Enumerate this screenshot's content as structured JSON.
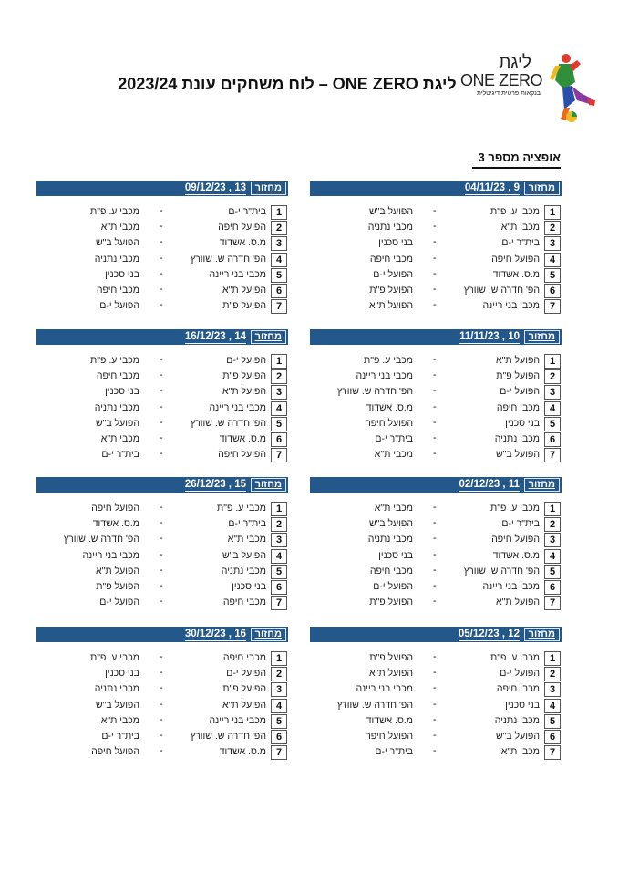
{
  "header": {
    "title": "ליגת ONE ZERO – לוח משחקים עונת 2023/24",
    "logo": {
      "line1": "ליגת",
      "line2": "ONE ZERO",
      "line3": "בנקאות פרטית דיגיטלית"
    },
    "subtitle": "אופציה מספר 3"
  },
  "round_label": "מחזור",
  "separator": " , ",
  "colors": {
    "bar": "#24578a"
  },
  "rounds": [
    {
      "round": "9",
      "date": "04/11/23",
      "matches": [
        [
          "1",
          "מכבי ע. פ\"ת",
          "הפועל ב\"ש"
        ],
        [
          "2",
          "מכבי ת\"א",
          "מכבי נתניה"
        ],
        [
          "3",
          "בית\"ר י-ם",
          "בני סכנין"
        ],
        [
          "4",
          "הפועל חיפה",
          "מכבי חיפה"
        ],
        [
          "5",
          "מ.ס. אשדוד",
          "הפועל י-ם"
        ],
        [
          "6",
          "הפ' חדרה ש. שוורץ",
          "הפועל פ\"ת"
        ],
        [
          "7",
          "מכבי בני ריינה",
          "הפועל ת\"א"
        ]
      ]
    },
    {
      "round": "13",
      "date": "09/12/23",
      "matches": [
        [
          "1",
          "בית\"ר י-ם",
          "מכבי ע. פ\"ת"
        ],
        [
          "2",
          "הפועל חיפה",
          "מכבי ת\"א"
        ],
        [
          "3",
          "מ.ס. אשדוד",
          "הפועל ב\"ש"
        ],
        [
          "4",
          "הפ' חדרה ש. שוורץ",
          "מכבי נתניה"
        ],
        [
          "5",
          "מכבי בני ריינה",
          "בני סכנין"
        ],
        [
          "6",
          "הפועל ת\"א",
          "מכבי חיפה"
        ],
        [
          "7",
          "הפועל פ\"ת",
          "הפועל י-ם"
        ]
      ]
    },
    {
      "round": "10",
      "date": "11/11/23",
      "matches": [
        [
          "1",
          "הפועל ת\"א",
          "מכבי ע. פ\"ת"
        ],
        [
          "2",
          "הפועל פ\"ת",
          "מכבי בני ריינה"
        ],
        [
          "3",
          "הפועל י-ם",
          "הפ' חדרה ש. שוורץ"
        ],
        [
          "4",
          "מכבי חיפה",
          "מ.ס. אשדוד"
        ],
        [
          "5",
          "בני סכנין",
          "הפועל חיפה"
        ],
        [
          "6",
          "מכבי נתניה",
          "בית\"ר י-ם"
        ],
        [
          "7",
          "הפועל ב\"ש",
          "מכבי ת\"א"
        ]
      ]
    },
    {
      "round": "14",
      "date": "16/12/23",
      "matches": [
        [
          "1",
          "הפועל י-ם",
          "מכבי ע. פ\"ת"
        ],
        [
          "2",
          "הפועל פ\"ת",
          "מכבי חיפה"
        ],
        [
          "3",
          "הפועל ת\"א",
          "בני סכנין"
        ],
        [
          "4",
          "מכבי בני ריינה",
          "מכבי נתניה"
        ],
        [
          "5",
          "הפ' חדרה ש. שוורץ",
          "הפועל ב\"ש"
        ],
        [
          "6",
          "מ.ס. אשדוד",
          "מכבי ת\"א"
        ],
        [
          "7",
          "הפועל חיפה",
          "בית\"ר י-ם"
        ]
      ]
    },
    {
      "round": "11",
      "date": "02/12/23",
      "matches": [
        [
          "1",
          "מכבי ע. פ\"ת",
          "מכבי ת\"א"
        ],
        [
          "2",
          "בית\"ר י-ם",
          "הפועל ב\"ש"
        ],
        [
          "3",
          "הפועל חיפה",
          "מכבי נתניה"
        ],
        [
          "4",
          "מ.ס. אשדוד",
          "בני סכנין"
        ],
        [
          "5",
          "הפ' חדרה ש. שוורץ",
          "מכבי חיפה"
        ],
        [
          "6",
          "מכבי בני ריינה",
          "הפועל י-ם"
        ],
        [
          "7",
          "הפועל ת\"א",
          "הפועל פ\"ת"
        ]
      ]
    },
    {
      "round": "15",
      "date": "26/12/23",
      "matches": [
        [
          "1",
          "מכבי ע. פ\"ת",
          "הפועל חיפה"
        ],
        [
          "2",
          "בית\"ר י-ם",
          "מ.ס. אשדוד"
        ],
        [
          "3",
          "מכבי ת\"א",
          "הפ' חדרה ש. שוורץ"
        ],
        [
          "4",
          "הפועל ב\"ש",
          "מכבי בני ריינה"
        ],
        [
          "5",
          "מכבי נתניה",
          "הפועל ת\"א"
        ],
        [
          "6",
          "בני סכנין",
          "הפועל פ\"ת"
        ],
        [
          "7",
          "מכבי חיפה",
          "הפועל י-ם"
        ]
      ]
    },
    {
      "round": "12",
      "date": "05/12/23",
      "matches": [
        [
          "1",
          "מכבי ע. פ\"ת",
          "הפועל פ\"ת"
        ],
        [
          "2",
          "הפועל י-ם",
          "הפועל ת\"א"
        ],
        [
          "3",
          "מכבי חיפה",
          "מכבי בני ריינה"
        ],
        [
          "4",
          "בני סכנין",
          "הפ' חדרה ש. שוורץ"
        ],
        [
          "5",
          "מכבי נתניה",
          "מ.ס. אשדוד"
        ],
        [
          "6",
          "הפועל ב\"ש",
          "הפועל חיפה"
        ],
        [
          "7",
          "מכבי ת\"א",
          "בית\"ר י-ם"
        ]
      ]
    },
    {
      "round": "16",
      "date": "30/12/23",
      "matches": [
        [
          "1",
          "מכבי חיפה",
          "מכבי ע. פ\"ת"
        ],
        [
          "2",
          "הפועל י-ם",
          "בני סכנין"
        ],
        [
          "3",
          "הפועל פ\"ת",
          "מכבי נתניה"
        ],
        [
          "4",
          "הפועל ת\"א",
          "הפועל ב\"ש"
        ],
        [
          "5",
          "מכבי בני ריינה",
          "מכבי ת\"א"
        ],
        [
          "6",
          "הפ' חדרה ש. שוורץ",
          "בית\"ר י-ם"
        ],
        [
          "7",
          "מ.ס. אשדוד",
          "הפועל חיפה"
        ]
      ]
    }
  ]
}
